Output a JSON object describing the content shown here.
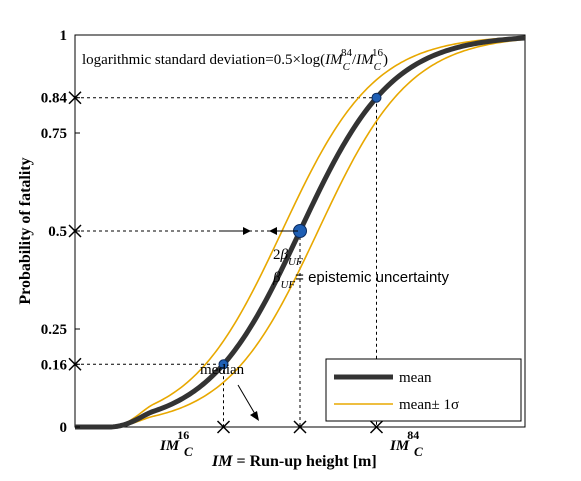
{
  "chart_data": {
    "type": "line",
    "title": "",
    "xlabel": "IM = Run-up height [m]",
    "xlabel_parts": {
      "var": "IM",
      "rest": " = Run-up height [m]"
    },
    "ylabel": "Probability of fatality",
    "ylim": [
      0,
      1
    ],
    "yticks": [
      {
        "value": 0,
        "label": "0"
      },
      {
        "value": 0.16,
        "label": "0.16"
      },
      {
        "value": 0.25,
        "label": "0.25"
      },
      {
        "value": 0.5,
        "label": "0.5"
      },
      {
        "value": 0.75,
        "label": "0.75"
      },
      {
        "value": 0.84,
        "label": "0.84"
      },
      {
        "value": 1,
        "label": "1"
      }
    ],
    "xticks": [
      {
        "value": 0.33,
        "label": "IM_C^16"
      },
      {
        "value": 0.5,
        "label": "median"
      },
      {
        "value": 0.67,
        "label": "IM_C^84"
      }
    ],
    "series": [
      {
        "name": "mean",
        "color": "#333333",
        "width": 5,
        "kind": "mean"
      },
      {
        "name": "mean± 1σ",
        "color": "#e8a800",
        "width": 1.6,
        "kind": "upper"
      },
      {
        "name": "mean± 1σ",
        "color": "#e8a800",
        "width": 1.6,
        "kind": "lower"
      }
    ],
    "points": [
      {
        "x": 0.33,
        "y": 0.16,
        "size": "small"
      },
      {
        "x": 0.5,
        "y": 0.5,
        "size": "large"
      },
      {
        "x": 0.67,
        "y": 0.84,
        "size": "small"
      }
    ],
    "formula": {
      "prefix": "logarithmic standard deviation=0.5×log(",
      "im_a": "IM",
      "sub_a": "C",
      "sup_a": "84",
      "slash": "/",
      "im_b": "IM",
      "sub_b": "C",
      "sup_b": "16",
      "suffix": ")"
    },
    "annotations": {
      "two_beta": {
        "coef": "2",
        "sym": "β",
        "sub": "UF"
      },
      "beta_def": {
        "sym": "β",
        "sub": "UF",
        "text": "= epistemic uncertainty"
      },
      "median": "median",
      "im16": {
        "im": "IM",
        "sub": "C",
        "sup": "16"
      },
      "im84": {
        "im": "IM",
        "sub": "C",
        "sup": "84"
      }
    },
    "legend": {
      "placement": "bottom-right",
      "items": [
        {
          "label": "mean",
          "color": "#333333",
          "width": 5
        },
        {
          "label": "mean± 1σ",
          "color": "#e8a800",
          "width": 1.6
        }
      ]
    },
    "grid": false
  }
}
